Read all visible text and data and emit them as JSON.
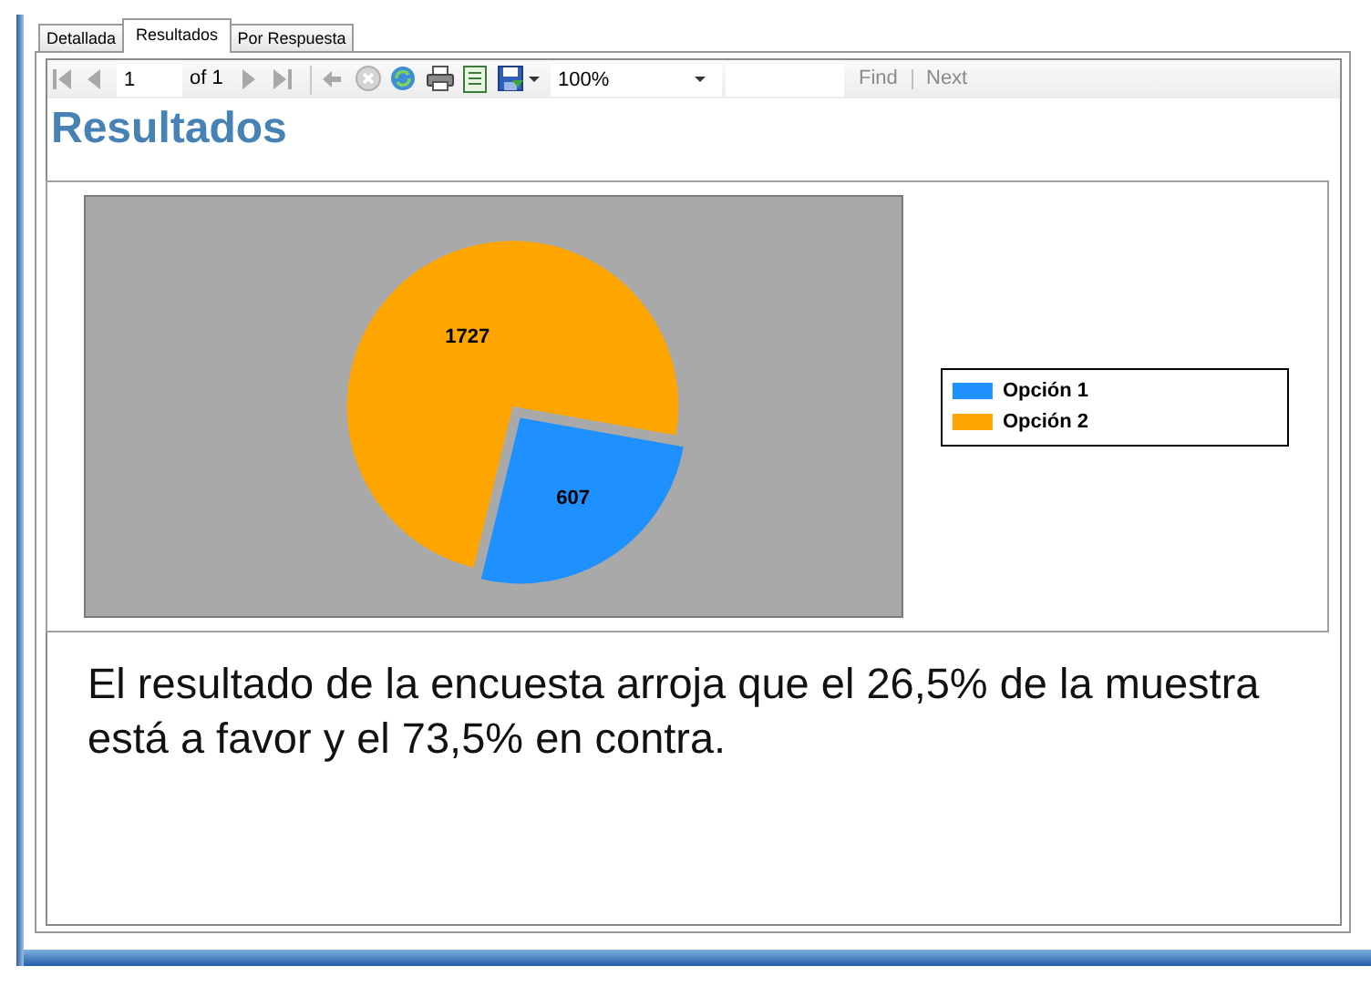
{
  "chart_data": {
    "type": "pie",
    "title": "Resultados",
    "categories": [
      "Opción 1",
      "Opción 2"
    ],
    "values": [
      607,
      1727
    ],
    "colors": [
      "#1e90ff",
      "#ffa500"
    ],
    "data_labels": true,
    "legend": "right",
    "annotations": [
      "Detallada",
      "Resultados",
      "Por Respuesta",
      "1",
      "of 1",
      "100%",
      "Find",
      "Next",
      "El resultado de la encuesta arroja que el 26,5% de la muestra está a favor y el 73,5% en contra."
    ]
  }
}
